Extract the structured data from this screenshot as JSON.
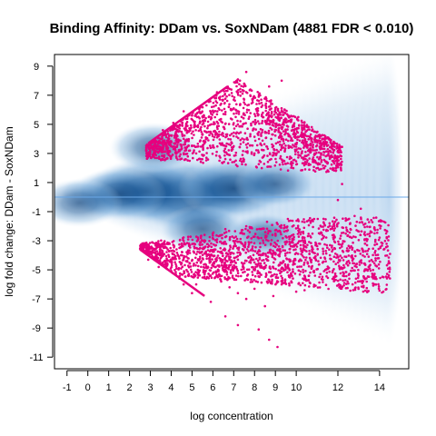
{
  "chart_data": {
    "type": "scatter",
    "title": "Binding Affinity: DDam vs. SoxNDam (4881 FDR < 0.010)",
    "xlabel": "log concentration",
    "ylabel": "log fold change: DDam - SoxNDam",
    "xlim": [
      -1.6,
      15.4
    ],
    "ylim": [
      -11.8,
      9.8
    ],
    "x_ticks": [
      -1,
      0,
      1,
      2,
      3,
      4,
      5,
      6,
      7,
      8,
      9,
      10,
      12,
      14
    ],
    "y_ticks": [
      9,
      7,
      5,
      3,
      1,
      -1,
      -3,
      -5,
      -7,
      -9,
      -11
    ],
    "grid": false,
    "reference_line": {
      "y": 0,
      "color": "#6aa8e8"
    },
    "density_color": "#1a5a9a",
    "point_color": "#e6007e",
    "upper_edge_line": {
      "x": [
        2.9,
        6.7
      ],
      "y": [
        3.7,
        7.6
      ]
    },
    "lower_edge_line": {
      "x": [
        2.5,
        5.6
      ],
      "y": [
        -3.6,
        -6.8
      ]
    },
    "density_clusters": [
      {
        "x": 4.8,
        "y": 0.1,
        "weight": 1.0
      },
      {
        "x": 2.8,
        "y": 0.4,
        "weight": 0.8
      },
      {
        "x": 1.5,
        "y": 0.2,
        "weight": 0.5
      },
      {
        "x": 7.0,
        "y": 0.6,
        "weight": 0.7
      },
      {
        "x": 9.0,
        "y": 0.9,
        "weight": 0.35
      },
      {
        "x": -0.4,
        "y": -0.4,
        "weight": 0.4
      },
      {
        "x": 3.2,
        "y": 3.4,
        "weight": 0.45
      },
      {
        "x": 5.5,
        "y": -2.2,
        "weight": 0.4
      },
      {
        "x": 8.5,
        "y": -2.6,
        "weight": 0.3
      }
    ],
    "upper_points": [
      [
        3.6,
        4.6
      ],
      [
        4.1,
        5.1
      ],
      [
        4.6,
        5.9
      ],
      [
        5.1,
        4.8
      ],
      [
        5.4,
        6.2
      ],
      [
        5.8,
        5.5
      ],
      [
        6.1,
        6.8
      ],
      [
        6.4,
        5.2
      ],
      [
        6.7,
        7.3
      ],
      [
        7.0,
        6.1
      ],
      [
        7.3,
        8.0
      ],
      [
        7.6,
        8.6
      ],
      [
        7.8,
        7.0
      ],
      [
        8.1,
        6.4
      ],
      [
        8.4,
        5.8
      ],
      [
        8.7,
        7.6
      ],
      [
        9.0,
        6.0
      ],
      [
        9.3,
        8.0
      ],
      [
        9.6,
        5.2
      ],
      [
        9.9,
        4.6
      ],
      [
        10.2,
        4.2
      ],
      [
        10.5,
        3.8
      ],
      [
        10.8,
        3.4
      ],
      [
        11.2,
        2.9
      ],
      [
        11.5,
        2.3
      ],
      [
        11.9,
        1.8
      ],
      [
        12.2,
        0.9
      ],
      [
        12.0,
        -0.2
      ],
      [
        8.8,
        4.0
      ],
      [
        9.8,
        3.4
      ],
      [
        7.2,
        5.0
      ],
      [
        6.5,
        4.2
      ],
      [
        5.6,
        3.8
      ],
      [
        4.9,
        3.2
      ],
      [
        8.0,
        3.0
      ],
      [
        9.4,
        2.5
      ],
      [
        10.6,
        2.2
      ],
      [
        7.6,
        3.6
      ],
      [
        6.9,
        3.2
      ],
      [
        5.2,
        3.0
      ],
      [
        4.4,
        3.9
      ],
      [
        3.9,
        4.2
      ],
      [
        6.2,
        7.2
      ],
      [
        7.5,
        7.8
      ],
      [
        8.2,
        6.9
      ],
      [
        8.9,
        5.3
      ],
      [
        10.1,
        5.5
      ],
      [
        9.5,
        4.4
      ],
      [
        6.0,
        5.9
      ],
      [
        5.0,
        5.6
      ]
    ],
    "lower_points": [
      [
        2.9,
        -4.3
      ],
      [
        3.4,
        -4.8
      ],
      [
        3.9,
        -4.1
      ],
      [
        4.4,
        -5.6
      ],
      [
        4.8,
        -4.2
      ],
      [
        5.2,
        -6.0
      ],
      [
        5.6,
        -5.3
      ],
      [
        6.0,
        -4.6
      ],
      [
        6.4,
        -5.8
      ],
      [
        6.8,
        -6.2
      ],
      [
        7.2,
        -6.6
      ],
      [
        7.6,
        -7.0
      ],
      [
        8.0,
        -6.3
      ],
      [
        8.5,
        -7.5
      ],
      [
        8.9,
        -6.8
      ],
      [
        9.3,
        -6.0
      ],
      [
        9.7,
        -5.4
      ],
      [
        10.0,
        -6.5
      ],
      [
        10.4,
        -6.4
      ],
      [
        10.9,
        -5.4
      ],
      [
        11.4,
        -5.0
      ],
      [
        11.9,
        -4.6
      ],
      [
        12.4,
        -4.1
      ],
      [
        12.9,
        -4.8
      ],
      [
        13.3,
        -3.2
      ],
      [
        13.8,
        -3.7
      ],
      [
        14.2,
        -3.6
      ],
      [
        14.5,
        -3.9
      ],
      [
        13.6,
        -2.4
      ],
      [
        12.6,
        -2.2
      ],
      [
        11.6,
        -1.8
      ],
      [
        10.6,
        -1.6
      ],
      [
        9.6,
        -1.5
      ],
      [
        8.6,
        -1.7
      ],
      [
        7.6,
        -2.0
      ],
      [
        6.6,
        -2.2
      ],
      [
        5.6,
        -2.6
      ],
      [
        4.6,
        -3.0
      ],
      [
        3.6,
        -3.2
      ],
      [
        6.6,
        -8.2
      ],
      [
        7.2,
        -8.8
      ],
      [
        8.2,
        -9.1
      ],
      [
        8.7,
        -9.8
      ],
      [
        9.1,
        -10.3
      ],
      [
        8.3,
        -4.0
      ],
      [
        9.9,
        -3.4
      ],
      [
        11.1,
        -3.2
      ],
      [
        12.1,
        -3.5
      ],
      [
        7.0,
        -3.4
      ],
      [
        5.4,
        -3.8
      ],
      [
        4.1,
        -3.7
      ],
      [
        6.2,
        -3.1
      ],
      [
        10.3,
        -2.8
      ],
      [
        11.8,
        -2.6
      ],
      [
        9.0,
        -2.5
      ],
      [
        12.8,
        -1.3
      ],
      [
        13.1,
        -0.8
      ],
      [
        5.9,
        -7.2
      ],
      [
        5.0,
        -6.6
      ],
      [
        4.6,
        -6.0
      ]
    ]
  }
}
